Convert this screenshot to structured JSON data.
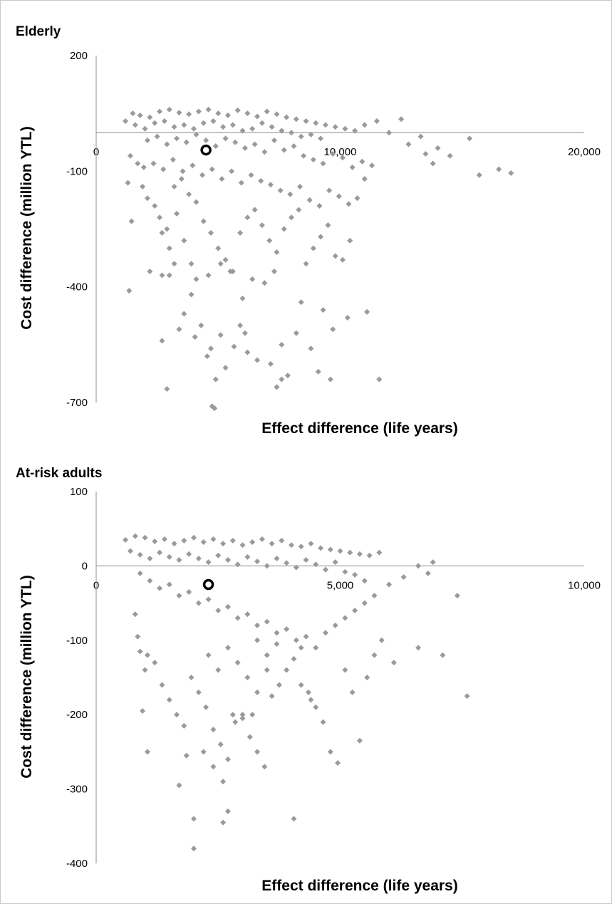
{
  "chart_data": [
    {
      "type": "scatter",
      "title": "Elderly",
      "xlabel": "Effect difference (life years)",
      "ylabel": "Cost difference (million YTL)",
      "xlim": [
        0,
        20000
      ],
      "ylim": [
        -700,
        200
      ],
      "x_ticks": [
        "0",
        "10,000",
        "20,000"
      ],
      "y_ticks": [
        "200",
        "-100",
        "-400",
        "-700"
      ],
      "base_case": {
        "x": 4500,
        "y": -45
      },
      "points": [
        [
          1500,
          50
        ],
        [
          1800,
          45
        ],
        [
          2200,
          40
        ],
        [
          2600,
          55
        ],
        [
          3000,
          60
        ],
        [
          3400,
          52
        ],
        [
          3800,
          48
        ],
        [
          4200,
          55
        ],
        [
          4600,
          60
        ],
        [
          5000,
          50
        ],
        [
          5400,
          45
        ],
        [
          5800,
          58
        ],
        [
          6200,
          50
        ],
        [
          6600,
          42
        ],
        [
          7000,
          55
        ],
        [
          7400,
          48
        ],
        [
          7800,
          40
        ],
        [
          8200,
          35
        ],
        [
          8600,
          30
        ],
        [
          9000,
          25
        ],
        [
          9400,
          20
        ],
        [
          9800,
          15
        ],
        [
          10200,
          10
        ],
        [
          10600,
          5
        ],
        [
          1200,
          30
        ],
        [
          1600,
          20
        ],
        [
          2000,
          10
        ],
        [
          2400,
          25
        ],
        [
          2800,
          30
        ],
        [
          3200,
          15
        ],
        [
          3600,
          20
        ],
        [
          4000,
          10
        ],
        [
          4400,
          25
        ],
        [
          4800,
          30
        ],
        [
          5200,
          15
        ],
        [
          5600,
          20
        ],
        [
          6000,
          5
        ],
        [
          6400,
          10
        ],
        [
          6800,
          25
        ],
        [
          7200,
          15
        ],
        [
          7600,
          5
        ],
        [
          8000,
          0
        ],
        [
          8400,
          -10
        ],
        [
          8800,
          -5
        ],
        [
          9200,
          -15
        ],
        [
          2100,
          -20
        ],
        [
          2500,
          -10
        ],
        [
          2900,
          -30
        ],
        [
          3300,
          -15
        ],
        [
          3700,
          -25
        ],
        [
          4100,
          -5
        ],
        [
          4500,
          -20
        ],
        [
          4900,
          -35
        ],
        [
          5300,
          -15
        ],
        [
          5700,
          -25
        ],
        [
          6100,
          -40
        ],
        [
          6500,
          -30
        ],
        [
          6900,
          -50
        ],
        [
          7300,
          -20
        ],
        [
          7700,
          -45
        ],
        [
          8100,
          -35
        ],
        [
          8500,
          -60
        ],
        [
          8900,
          -70
        ],
        [
          9300,
          -80
        ],
        [
          9700,
          -55
        ],
        [
          10100,
          -65
        ],
        [
          10500,
          -90
        ],
        [
          10900,
          -75
        ],
        [
          11300,
          -85
        ],
        [
          12000,
          0
        ],
        [
          12800,
          -30
        ],
        [
          13300,
          -10
        ],
        [
          13800,
          -80
        ],
        [
          14500,
          -60
        ],
        [
          15300,
          -15
        ],
        [
          15700,
          -110
        ],
        [
          16500,
          -95
        ],
        [
          17000,
          -105
        ],
        [
          13500,
          -55
        ],
        [
          14000,
          -40
        ],
        [
          12500,
          35
        ],
        [
          11500,
          30
        ],
        [
          11000,
          20
        ],
        [
          1400,
          -60
        ],
        [
          1300,
          -130
        ],
        [
          1450,
          -230
        ],
        [
          1350,
          -410
        ],
        [
          1900,
          -140
        ],
        [
          2100,
          -170
        ],
        [
          2400,
          -190
        ],
        [
          2700,
          -260
        ],
        [
          3000,
          -300
        ],
        [
          3300,
          -210
        ],
        [
          3600,
          -280
        ],
        [
          3900,
          -340
        ],
        [
          2200,
          -360
        ],
        [
          2600,
          -220
        ],
        [
          2900,
          -250
        ],
        [
          3200,
          -140
        ],
        [
          3500,
          -120
        ],
        [
          3800,
          -160
        ],
        [
          4100,
          -180
        ],
        [
          4400,
          -230
        ],
        [
          4700,
          -260
        ],
        [
          5000,
          -300
        ],
        [
          5300,
          -330
        ],
        [
          5600,
          -360
        ],
        [
          5900,
          -260
        ],
        [
          6200,
          -220
        ],
        [
          6500,
          -200
        ],
        [
          6800,
          -240
        ],
        [
          7100,
          -280
        ],
        [
          7400,
          -310
        ],
        [
          7700,
          -250
        ],
        [
          8000,
          -220
        ],
        [
          8300,
          -200
        ],
        [
          8600,
          -340
        ],
        [
          8900,
          -300
        ],
        [
          9200,
          -270
        ],
        [
          9500,
          -240
        ],
        [
          9800,
          -320
        ],
        [
          10100,
          -330
        ],
        [
          10400,
          -280
        ],
        [
          10700,
          -170
        ],
        [
          11000,
          -120
        ],
        [
          2700,
          -370
        ],
        [
          3000,
          -370
        ],
        [
          3200,
          -340
        ],
        [
          3900,
          -420
        ],
        [
          4100,
          -380
        ],
        [
          4600,
          -370
        ],
        [
          5100,
          -340
        ],
        [
          5500,
          -360
        ],
        [
          6000,
          -430
        ],
        [
          6400,
          -380
        ],
        [
          6900,
          -390
        ],
        [
          7300,
          -360
        ],
        [
          8400,
          -440
        ],
        [
          4300,
          -500
        ],
        [
          3400,
          -510
        ],
        [
          2700,
          -540
        ],
        [
          4050,
          -530
        ],
        [
          4700,
          -560
        ],
        [
          4550,
          -580
        ],
        [
          5100,
          -525
        ],
        [
          5650,
          -555
        ],
        [
          6200,
          -570
        ],
        [
          6600,
          -590
        ],
        [
          7150,
          -600
        ],
        [
          7600,
          -550
        ],
        [
          8200,
          -520
        ],
        [
          8800,
          -560
        ],
        [
          9600,
          -640
        ],
        [
          10300,
          -480
        ],
        [
          11100,
          -465
        ],
        [
          11600,
          -640
        ],
        [
          2900,
          -665
        ],
        [
          4750,
          -710
        ],
        [
          4850,
          -715
        ],
        [
          4900,
          -640
        ],
        [
          7400,
          -660
        ],
        [
          7600,
          -640
        ],
        [
          9100,
          -620
        ],
        [
          7850,
          -630
        ],
        [
          5300,
          -610
        ],
        [
          6100,
          -520
        ],
        [
          5900,
          -500
        ],
        [
          3600,
          -470
        ],
        [
          9700,
          -510
        ],
        [
          9300,
          -460
        ],
        [
          1700,
          -80
        ],
        [
          1950,
          -90
        ],
        [
          2350,
          -80
        ],
        [
          2750,
          -95
        ],
        [
          3150,
          -70
        ],
        [
          3550,
          -100
        ],
        [
          3950,
          -85
        ],
        [
          4350,
          -110
        ],
        [
          4750,
          -95
        ],
        [
          5150,
          -120
        ],
        [
          5550,
          -100
        ],
        [
          5950,
          -130
        ],
        [
          6350,
          -110
        ],
        [
          6750,
          -125
        ],
        [
          7150,
          -135
        ],
        [
          7550,
          -150
        ],
        [
          7950,
          -160
        ],
        [
          8350,
          -140
        ],
        [
          8750,
          -175
        ],
        [
          9150,
          -190
        ],
        [
          9550,
          -150
        ],
        [
          9950,
          -165
        ],
        [
          10350,
          -185
        ]
      ]
    },
    {
      "type": "scatter",
      "title": "At-risk adults",
      "xlabel": "Effect difference (life years)",
      "ylabel": "Cost difference (million YTL)",
      "xlim": [
        0,
        10000
      ],
      "ylim": [
        -400,
        100
      ],
      "x_ticks": [
        "0",
        "5,000",
        "10,000"
      ],
      "y_ticks": [
        "100",
        "0",
        "-100",
        "-200",
        "-300",
        "-400"
      ],
      "base_case": {
        "x": 2300,
        "y": -25
      },
      "points": [
        [
          600,
          35
        ],
        [
          800,
          40
        ],
        [
          1000,
          38
        ],
        [
          1200,
          33
        ],
        [
          1400,
          36
        ],
        [
          1600,
          30
        ],
        [
          1800,
          34
        ],
        [
          2000,
          38
        ],
        [
          2200,
          32
        ],
        [
          2400,
          36
        ],
        [
          2600,
          30
        ],
        [
          2800,
          34
        ],
        [
          3000,
          28
        ],
        [
          3200,
          32
        ],
        [
          3400,
          36
        ],
        [
          3600,
          30
        ],
        [
          3800,
          34
        ],
        [
          4000,
          28
        ],
        [
          4200,
          26
        ],
        [
          4400,
          30
        ],
        [
          4600,
          24
        ],
        [
          4800,
          22
        ],
        [
          5000,
          20
        ],
        [
          5200,
          18
        ],
        [
          5400,
          16
        ],
        [
          5600,
          14
        ],
        [
          5800,
          18
        ],
        [
          700,
          20
        ],
        [
          900,
          15
        ],
        [
          1100,
          10
        ],
        [
          1300,
          18
        ],
        [
          1500,
          12
        ],
        [
          1700,
          8
        ],
        [
          1900,
          16
        ],
        [
          2100,
          10
        ],
        [
          2300,
          5
        ],
        [
          2500,
          14
        ],
        [
          2700,
          8
        ],
        [
          2900,
          2
        ],
        [
          3100,
          12
        ],
        [
          3300,
          6
        ],
        [
          3500,
          0
        ],
        [
          3700,
          10
        ],
        [
          3900,
          4
        ],
        [
          4100,
          -2
        ],
        [
          4300,
          8
        ],
        [
          4500,
          2
        ],
        [
          4700,
          -5
        ],
        [
          4900,
          5
        ],
        [
          5100,
          -8
        ],
        [
          5300,
          -12
        ],
        [
          5500,
          -20
        ],
        [
          6000,
          -25
        ],
        [
          6300,
          -15
        ],
        [
          6600,
          0
        ],
        [
          6900,
          5
        ],
        [
          6800,
          -10
        ],
        [
          900,
          -10
        ],
        [
          1100,
          -20
        ],
        [
          1300,
          -30
        ],
        [
          1500,
          -25
        ],
        [
          1700,
          -40
        ],
        [
          1900,
          -35
        ],
        [
          2100,
          -50
        ],
        [
          2300,
          -45
        ],
        [
          2500,
          -60
        ],
        [
          2700,
          -55
        ],
        [
          2900,
          -70
        ],
        [
          3100,
          -65
        ],
        [
          3300,
          -80
        ],
        [
          3500,
          -75
        ],
        [
          3700,
          -90
        ],
        [
          3900,
          -85
        ],
        [
          4100,
          -100
        ],
        [
          4300,
          -95
        ],
        [
          4500,
          -110
        ],
        [
          4700,
          -90
        ],
        [
          4900,
          -80
        ],
        [
          5100,
          -70
        ],
        [
          5300,
          -60
        ],
        [
          5500,
          -50
        ],
        [
          5700,
          -40
        ],
        [
          800,
          -65
        ],
        [
          850,
          -95
        ],
        [
          900,
          -115
        ],
        [
          1050,
          -120
        ],
        [
          1000,
          -140
        ],
        [
          1200,
          -130
        ],
        [
          1350,
          -160
        ],
        [
          1500,
          -180
        ],
        [
          1650,
          -200
        ],
        [
          1800,
          -215
        ],
        [
          1950,
          -150
        ],
        [
          2100,
          -170
        ],
        [
          2250,
          -190
        ],
        [
          2400,
          -220
        ],
        [
          2550,
          -240
        ],
        [
          2700,
          -260
        ],
        [
          2850,
          -210
        ],
        [
          3000,
          -200
        ],
        [
          3150,
          -230
        ],
        [
          3300,
          -250
        ],
        [
          3450,
          -270
        ],
        [
          3600,
          -175
        ],
        [
          3750,
          -160
        ],
        [
          3900,
          -140
        ],
        [
          4050,
          -125
        ],
        [
          4200,
          -110
        ],
        [
          4350,
          -170
        ],
        [
          4500,
          -190
        ],
        [
          4650,
          -210
        ],
        [
          4800,
          -250
        ],
        [
          4950,
          -265
        ],
        [
          5100,
          -140
        ],
        [
          5250,
          -170
        ],
        [
          5400,
          -235
        ],
        [
          5550,
          -150
        ],
        [
          5700,
          -120
        ],
        [
          5850,
          -100
        ],
        [
          6100,
          -130
        ],
        [
          6600,
          -110
        ],
        [
          7100,
          -120
        ],
        [
          7400,
          -40
        ],
        [
          7600,
          -175
        ],
        [
          950,
          -195
        ],
        [
          1050,
          -250
        ],
        [
          1700,
          -295
        ],
        [
          1850,
          -255
        ],
        [
          2000,
          -340
        ],
        [
          2000,
          -380
        ],
        [
          2600,
          -345
        ],
        [
          2700,
          -330
        ],
        [
          4050,
          -340
        ],
        [
          3000,
          -205
        ],
        [
          3200,
          -200
        ],
        [
          3300,
          -170
        ],
        [
          2200,
          -250
        ],
        [
          2400,
          -270
        ],
        [
          2600,
          -290
        ],
        [
          2800,
          -200
        ],
        [
          3500,
          -140
        ],
        [
          3700,
          -105
        ],
        [
          4200,
          -160
        ],
        [
          4400,
          -180
        ],
        [
          2300,
          -120
        ],
        [
          2500,
          -140
        ],
        [
          2700,
          -110
        ],
        [
          2900,
          -130
        ],
        [
          3100,
          -150
        ],
        [
          3300,
          -100
        ],
        [
          3500,
          -120
        ]
      ]
    }
  ]
}
